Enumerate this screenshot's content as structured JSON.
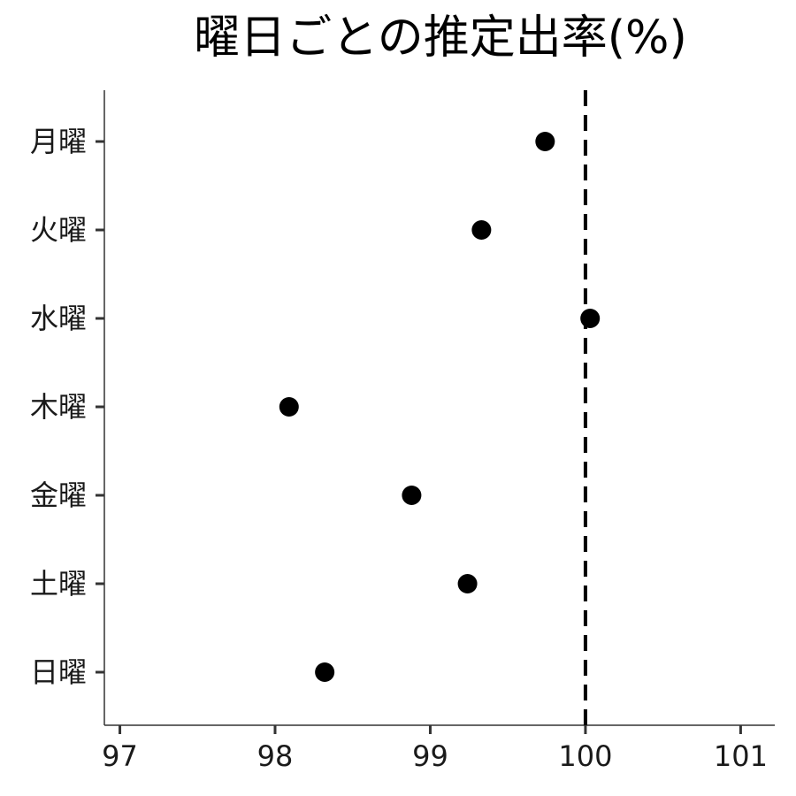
{
  "chart_data": {
    "type": "scatter",
    "title": "曜日ごとの推定出率(%)",
    "xlabel": "",
    "ylabel": "",
    "categories": [
      "月曜",
      "火曜",
      "水曜",
      "木曜",
      "金曜",
      "土曜",
      "日曜"
    ],
    "values": [
      99.74,
      99.33,
      100.03,
      98.09,
      98.88,
      99.24,
      98.32
    ],
    "xlim": [
      96.9,
      101.22
    ],
    "xticks": [
      97,
      98,
      99,
      100,
      101
    ],
    "reference_line": {
      "x": 100,
      "style": "dashed"
    },
    "grid": false,
    "legend": "none"
  }
}
